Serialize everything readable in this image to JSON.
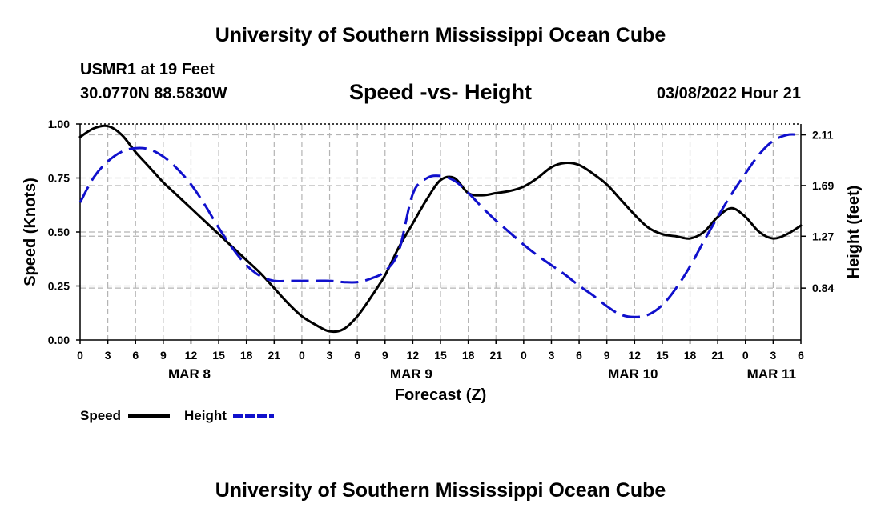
{
  "page": {
    "title_top": "University of Southern Mississippi Ocean Cube",
    "title_bottom": "University of Southern Mississippi Ocean Cube",
    "station": "USMR1 at 19 Feet",
    "coordinates": "30.0770N  88.5830W",
    "subtitle": "Speed -vs- Height",
    "datetime": "03/08/2022 Hour 21"
  },
  "chart_data": {
    "type": "line",
    "title": "Speed -vs- Height",
    "xlabel": "Forecast (Z)",
    "ylabel": "Speed (Knots)",
    "y2label": "Height (feet)",
    "x_unit": "hours from MAR 8 00Z",
    "xlim": [
      0,
      78
    ],
    "ylim": [
      0,
      1
    ],
    "y2lim": [
      0.41,
      2.2
    ],
    "x_ticks": [
      0,
      3,
      6,
      9,
      12,
      15,
      18,
      21,
      24,
      27,
      30,
      33,
      36,
      39,
      42,
      45,
      48,
      51,
      54,
      57,
      60,
      63,
      66,
      69,
      72,
      75,
      78
    ],
    "x_tick_labels": [
      "0",
      "3",
      "6",
      "9",
      "12",
      "15",
      "18",
      "21",
      "0",
      "3",
      "6",
      "9",
      "12",
      "15",
      "18",
      "21",
      "0",
      "3",
      "6",
      "9",
      "12",
      "15",
      "18",
      "21",
      "0",
      "3",
      "6"
    ],
    "date_labels": [
      {
        "x": 12,
        "label": "MAR 8"
      },
      {
        "x": 36,
        "label": "MAR 9"
      },
      {
        "x": 60,
        "label": "MAR 10"
      },
      {
        "x": 75,
        "label": "MAR 11"
      }
    ],
    "y_ticks": [
      0,
      0.25,
      0.5,
      0.75,
      1.0
    ],
    "y_tick_labels": [
      "0.00",
      "0.25",
      "0.50",
      "0.75",
      "1.00"
    ],
    "y2_ticks": [
      0.84,
      1.27,
      1.69,
      2.11
    ],
    "y2_tick_labels": [
      "0.84",
      "1.27",
      "1.69",
      "2.11"
    ],
    "grid": true,
    "legend_position": "bottom-left",
    "series": [
      {
        "name": "Speed",
        "axis": "left",
        "color": "#000000",
        "style": "solid",
        "x": [
          0,
          1.5,
          3,
          4.5,
          6,
          7.5,
          9,
          10.5,
          12,
          13.5,
          15,
          16.5,
          18,
          19.5,
          21,
          22.5,
          24,
          25.5,
          27,
          28.5,
          30,
          31.5,
          33,
          34.5,
          36,
          37.5,
          39,
          40.5,
          42,
          43.5,
          45,
          46.5,
          48,
          49.5,
          51,
          52.5,
          54,
          55.5,
          57,
          58.5,
          60,
          61.5,
          63,
          64.5,
          66,
          67.5,
          69,
          70.5,
          72,
          73.5,
          75,
          76.5,
          78
        ],
        "values": [
          0.94,
          0.98,
          0.99,
          0.95,
          0.87,
          0.8,
          0.73,
          0.67,
          0.61,
          0.55,
          0.49,
          0.43,
          0.37,
          0.31,
          0.24,
          0.17,
          0.11,
          0.07,
          0.04,
          0.05,
          0.11,
          0.2,
          0.3,
          0.43,
          0.54,
          0.65,
          0.74,
          0.75,
          0.68,
          0.67,
          0.68,
          0.69,
          0.71,
          0.75,
          0.8,
          0.82,
          0.81,
          0.77,
          0.72,
          0.65,
          0.58,
          0.52,
          0.49,
          0.48,
          0.47,
          0.5,
          0.57,
          0.61,
          0.57,
          0.5,
          0.47,
          0.49,
          0.53
        ]
      },
      {
        "name": "Height",
        "axis": "right",
        "color": "#1010cc",
        "style": "dashed",
        "x": [
          0,
          1.5,
          3,
          4.5,
          6,
          7.5,
          9,
          10.5,
          12,
          13.5,
          15,
          16.5,
          18,
          19.5,
          21,
          22.5,
          24,
          25.5,
          27,
          28.5,
          30,
          31.5,
          33,
          34.5,
          36,
          37.5,
          39,
          40.5,
          42,
          43.5,
          45,
          46.5,
          48,
          49.5,
          51,
          52.5,
          54,
          55.5,
          57,
          58.5,
          60,
          61.5,
          63,
          64.5,
          66,
          67.5,
          69,
          70.5,
          72,
          73.5,
          75,
          76.5,
          78
        ],
        "values": [
          1.55,
          1.76,
          1.89,
          1.97,
          2.0,
          1.99,
          1.93,
          1.83,
          1.7,
          1.53,
          1.34,
          1.17,
          1.03,
          0.94,
          0.9,
          0.9,
          0.9,
          0.9,
          0.9,
          0.89,
          0.89,
          0.92,
          0.98,
          1.15,
          1.62,
          1.75,
          1.77,
          1.73,
          1.63,
          1.51,
          1.4,
          1.3,
          1.2,
          1.11,
          1.03,
          0.95,
          0.86,
          0.78,
          0.69,
          0.62,
          0.6,
          0.62,
          0.7,
          0.84,
          1.02,
          1.23,
          1.43,
          1.62,
          1.79,
          1.95,
          2.06,
          2.11,
          2.11
        ]
      }
    ]
  }
}
